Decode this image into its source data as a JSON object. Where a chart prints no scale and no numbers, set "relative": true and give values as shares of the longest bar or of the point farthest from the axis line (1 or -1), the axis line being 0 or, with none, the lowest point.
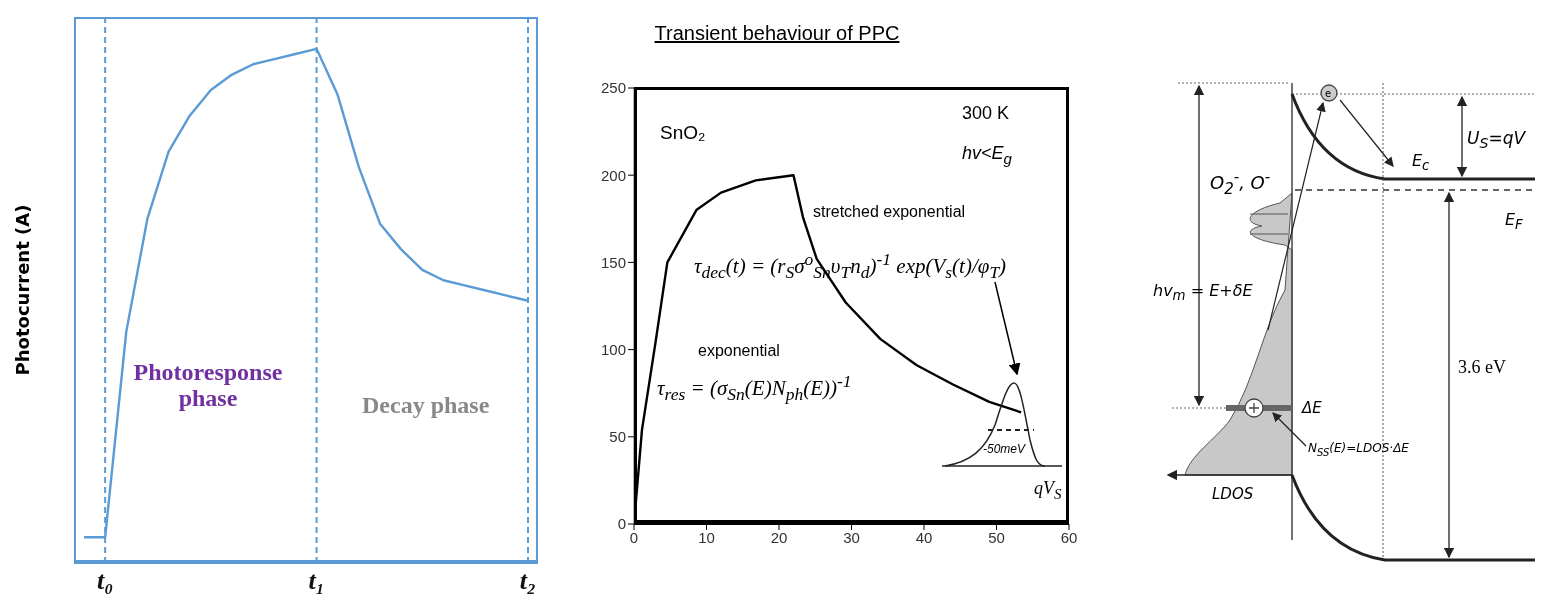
{
  "chart_data": [
    {
      "type": "line",
      "ylabel": "Photocurrent (A)",
      "relative": true,
      "tick_labels": "x",
      "categories": [
        null,
        "t₀",
        null,
        null,
        null,
        null,
        null,
        null,
        null,
        null,
        null,
        "t₁",
        null,
        null,
        null,
        null,
        null,
        null,
        null,
        null,
        null,
        "t₂"
      ],
      "series": [
        {
          "color": "#5b9bd5",
          "values": [
            0.05,
            0.05,
            0.45,
            0.67,
            0.8,
            0.87,
            0.92,
            0.95,
            0.97,
            0.98,
            0.99,
            1,
            0.91,
            0.77,
            0.66,
            0.61,
            0.57,
            0.55,
            0.54,
            0.53,
            0.52,
            0.51
          ]
        }
      ],
      "ref_lines": [
        {
          "axis": "x",
          "value": "t₀",
          "color": "#5b9bd5",
          "line_style": "dashed"
        },
        {
          "axis": "x",
          "value": "t₁",
          "color": "#5b9bd5",
          "line_style": "dashed"
        },
        {
          "axis": "x",
          "value": "t₂",
          "color": "#5b9bd5",
          "line_style": "dashed"
        }
      ],
      "annotations": [
        "Photoresponse phase",
        "Decay phase"
      ]
    },
    {
      "type": "line",
      "title": "Transient behaviour of  PPC",
      "xlim": [
        0,
        60
      ],
      "xticks": [
        0,
        10,
        20,
        30,
        40,
        50,
        60
      ],
      "ylim": [
        0,
        250
      ],
      "yticks": [
        0,
        50,
        100,
        150,
        200,
        250
      ],
      "x": [
        0,
        1.1,
        3.0,
        4.6,
        8.6,
        12,
        16.8,
        22,
        23.3,
        25.2,
        29.2,
        34,
        39,
        44,
        49,
        53.4
      ],
      "series": [
        {
          "color": "#000000",
          "values": [
            0,
            54,
            105,
            150,
            180,
            190,
            197,
            200,
            176,
            152,
            127,
            106,
            91,
            80,
            70,
            64
          ]
        }
      ],
      "annotations": [
        "SnO₂",
        "300 K",
        "hv<E$_{g}$",
        "stretched exponential",
        "τ$_{dec}$(t) = (r$_{S}$σ$^{o}$$_{Sn}$υ$_{T}$n$_{d}$)$^{-1}$ exp(V$_{s}$(t)/φ$_{T}$)",
        "exponential",
        "τ$_{res}$ = (σ$_{Sn}$(E)N$_{ph}$(E))$^{-1}$",
        "-50meV",
        "qV$_{S}$"
      ]
    },
    {
      "type": "other",
      "annotations": [
        "O$_{2}$$^{-}$, O$^{-}$",
        "U$_{S}$=qV",
        "E$_{c}$",
        "E$_{F}$",
        "hv$_{m}$ = E+δE",
        "ΔE",
        "N$_{SS}$(E)=LDOS·ΔE",
        "LDOS",
        "3.6 eV",
        "e"
      ]
    }
  ]
}
